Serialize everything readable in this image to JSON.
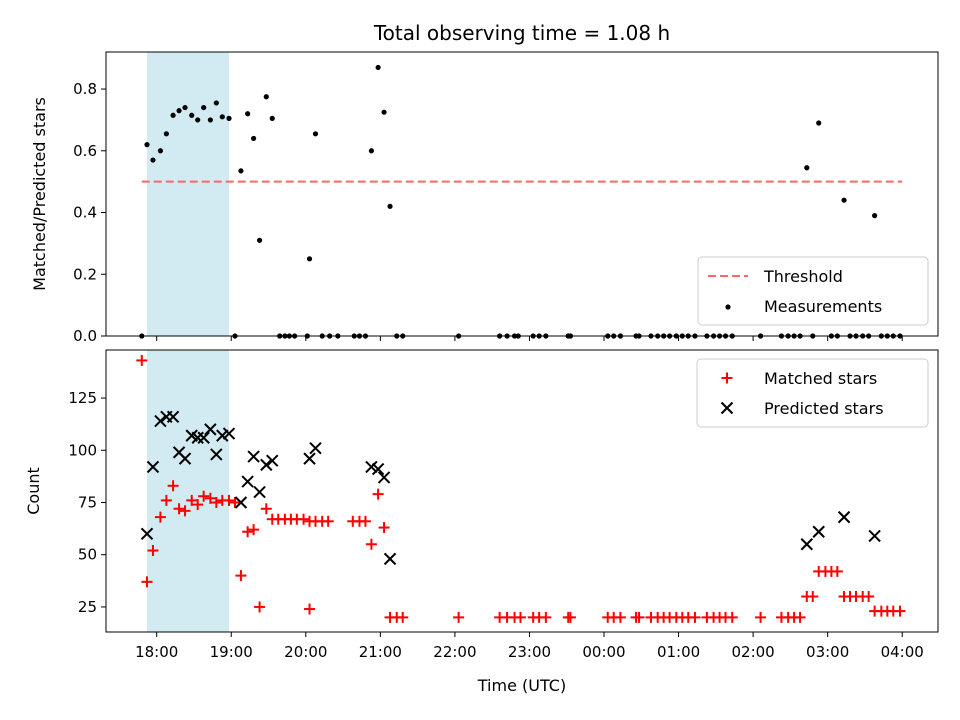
{
  "chart_data": [
    {
      "type": "scatter",
      "title": "Total observing time = 1.08 h",
      "ylabel": "Matched/Predicted stars",
      "xlabel": "",
      "x_unit": "hours since 18:00 UTC",
      "xlim": [
        -0.68,
        10.48
      ],
      "ylim": [
        0.0,
        0.92
      ],
      "yticks": [
        0.0,
        0.2,
        0.4,
        0.6,
        0.8
      ],
      "ytick_labels": [
        "0.0",
        "0.2",
        "0.4",
        "0.6",
        "0.8"
      ],
      "shaded_interval": {
        "x": [
          -0.13,
          0.97
        ],
        "color": "#add8e6"
      },
      "threshold": {
        "name": "Threshold",
        "y": 0.5,
        "x": [
          -0.2,
          10.0
        ],
        "color": "#ff6666"
      },
      "legend": {
        "position": "lower right",
        "entries": [
          "Threshold",
          "Measurements"
        ]
      },
      "series": [
        {
          "name": "Measurements",
          "color": "#000000",
          "points": [
            [
              -0.2,
              0.0
            ],
            [
              -0.13,
              0.62
            ],
            [
              -0.05,
              0.57
            ],
            [
              0.05,
              0.6
            ],
            [
              0.13,
              0.655
            ],
            [
              0.22,
              0.715
            ],
            [
              0.3,
              0.73
            ],
            [
              0.38,
              0.74
            ],
            [
              0.47,
              0.715
            ],
            [
              0.55,
              0.7
            ],
            [
              0.63,
              0.74
            ],
            [
              0.72,
              0.7
            ],
            [
              0.8,
              0.755
            ],
            [
              0.88,
              0.71
            ],
            [
              0.97,
              0.705
            ],
            [
              1.05,
              0.0
            ],
            [
              1.13,
              0.535
            ],
            [
              1.22,
              0.72
            ],
            [
              1.3,
              0.64
            ],
            [
              1.38,
              0.31
            ],
            [
              1.47,
              0.775
            ],
            [
              1.55,
              0.705
            ],
            [
              1.65,
              0.0
            ],
            [
              1.72,
              0.0
            ],
            [
              1.78,
              0.0
            ],
            [
              1.85,
              0.0
            ],
            [
              2.02,
              0.0
            ],
            [
              2.05,
              0.25
            ],
            [
              2.13,
              0.655
            ],
            [
              2.22,
              0.0
            ],
            [
              2.32,
              0.0
            ],
            [
              2.43,
              0.0
            ],
            [
              2.65,
              0.0
            ],
            [
              2.72,
              0.0
            ],
            [
              2.8,
              0.0
            ],
            [
              2.88,
              0.6
            ],
            [
              2.97,
              0.87
            ],
            [
              3.05,
              0.725
            ],
            [
              3.13,
              0.42
            ],
            [
              3.22,
              0.0
            ],
            [
              3.3,
              0.0
            ],
            [
              4.05,
              0.0
            ],
            [
              4.6,
              0.0
            ],
            [
              4.7,
              0.0
            ],
            [
              4.8,
              0.0
            ],
            [
              4.85,
              0.0
            ],
            [
              5.05,
              0.0
            ],
            [
              5.13,
              0.0
            ],
            [
              5.22,
              0.0
            ],
            [
              5.52,
              0.0
            ],
            [
              5.55,
              0.0
            ],
            [
              6.05,
              0.0
            ],
            [
              6.13,
              0.0
            ],
            [
              6.22,
              0.0
            ],
            [
              6.43,
              0.0
            ],
            [
              6.47,
              0.0
            ],
            [
              6.63,
              0.0
            ],
            [
              6.72,
              0.0
            ],
            [
              6.8,
              0.0
            ],
            [
              6.88,
              0.0
            ],
            [
              6.97,
              0.0
            ],
            [
              7.05,
              0.0
            ],
            [
              7.13,
              0.0
            ],
            [
              7.22,
              0.0
            ],
            [
              7.38,
              0.0
            ],
            [
              7.47,
              0.0
            ],
            [
              7.55,
              0.0
            ],
            [
              7.63,
              0.0
            ],
            [
              7.72,
              0.0
            ],
            [
              8.1,
              0.0
            ],
            [
              8.38,
              0.0
            ],
            [
              8.47,
              0.0
            ],
            [
              8.55,
              0.0
            ],
            [
              8.63,
              0.0
            ],
            [
              8.72,
              0.545
            ],
            [
              8.88,
              0.69
            ],
            [
              8.8,
              0.0
            ],
            [
              9.05,
              0.0
            ],
            [
              9.13,
              0.0
            ],
            [
              9.22,
              0.44
            ],
            [
              9.3,
              0.0
            ],
            [
              9.38,
              0.0
            ],
            [
              9.47,
              0.0
            ],
            [
              9.55,
              0.0
            ],
            [
              9.63,
              0.39
            ],
            [
              9.72,
              0.0
            ],
            [
              9.8,
              0.0
            ],
            [
              9.88,
              0.0
            ],
            [
              9.97,
              0.0
            ]
          ]
        }
      ]
    },
    {
      "type": "scatter",
      "title": "",
      "ylabel": "Count",
      "xlabel": "Time (UTC)",
      "x_unit": "hours since 18:00 UTC",
      "xlim": [
        -0.68,
        10.48
      ],
      "ylim": [
        13,
        148
      ],
      "xticks": [
        0,
        1,
        2,
        3,
        4,
        5,
        6,
        7,
        8,
        9,
        10
      ],
      "xtick_labels": [
        "18:00",
        "19:00",
        "20:00",
        "21:00",
        "22:00",
        "23:00",
        "00:00",
        "01:00",
        "02:00",
        "03:00",
        "04:00"
      ],
      "yticks": [
        25,
        50,
        75,
        100,
        125
      ],
      "ytick_labels": [
        "25",
        "50",
        "75",
        "100",
        "125"
      ],
      "shaded_interval": {
        "x": [
          -0.13,
          0.97
        ],
        "color": "#add8e6"
      },
      "legend": {
        "position": "upper right",
        "entries": [
          "Matched stars",
          "Predicted stars"
        ]
      },
      "series": [
        {
          "name": "Matched stars",
          "marker": "+",
          "color": "#ff0000",
          "points": [
            [
              -0.2,
              143
            ],
            [
              -0.13,
              37
            ],
            [
              -0.05,
              52
            ],
            [
              0.05,
              68
            ],
            [
              0.13,
              76
            ],
            [
              0.22,
              83
            ],
            [
              0.3,
              72
            ],
            [
              0.38,
              71
            ],
            [
              0.47,
              76
            ],
            [
              0.55,
              74
            ],
            [
              0.63,
              78
            ],
            [
              0.72,
              77
            ],
            [
              0.8,
              75
            ],
            [
              0.88,
              76
            ],
            [
              0.97,
              76
            ],
            [
              1.05,
              75
            ],
            [
              1.13,
              40
            ],
            [
              1.22,
              61
            ],
            [
              1.3,
              62
            ],
            [
              1.38,
              25
            ],
            [
              1.47,
              72
            ],
            [
              1.55,
              67
            ],
            [
              1.63,
              67
            ],
            [
              1.72,
              67
            ],
            [
              1.8,
              67
            ],
            [
              1.88,
              67
            ],
            [
              1.97,
              67
            ],
            [
              2.05,
              24
            ],
            [
              2.05,
              66
            ],
            [
              2.13,
              66
            ],
            [
              2.22,
              66
            ],
            [
              2.3,
              66
            ],
            [
              2.63,
              66
            ],
            [
              2.72,
              66
            ],
            [
              2.8,
              66
            ],
            [
              2.88,
              55
            ],
            [
              2.97,
              79
            ],
            [
              3.05,
              63
            ],
            [
              3.13,
              20
            ],
            [
              3.22,
              20
            ],
            [
              3.3,
              20
            ],
            [
              4.05,
              20
            ],
            [
              4.6,
              20
            ],
            [
              4.7,
              20
            ],
            [
              4.8,
              20
            ],
            [
              4.88,
              20
            ],
            [
              5.05,
              20
            ],
            [
              5.13,
              20
            ],
            [
              5.22,
              20
            ],
            [
              5.52,
              20
            ],
            [
              5.55,
              20
            ],
            [
              6.05,
              20
            ],
            [
              6.13,
              20
            ],
            [
              6.22,
              20
            ],
            [
              6.43,
              20
            ],
            [
              6.47,
              20
            ],
            [
              6.63,
              20
            ],
            [
              6.72,
              20
            ],
            [
              6.8,
              20
            ],
            [
              6.88,
              20
            ],
            [
              6.97,
              20
            ],
            [
              7.05,
              20
            ],
            [
              7.13,
              20
            ],
            [
              7.22,
              20
            ],
            [
              7.38,
              20
            ],
            [
              7.47,
              20
            ],
            [
              7.55,
              20
            ],
            [
              7.63,
              20
            ],
            [
              7.72,
              20
            ],
            [
              8.1,
              20
            ],
            [
              8.38,
              20
            ],
            [
              8.47,
              20
            ],
            [
              8.55,
              20
            ],
            [
              8.63,
              20
            ],
            [
              8.72,
              30
            ],
            [
              8.8,
              30
            ],
            [
              8.88,
              42
            ],
            [
              8.97,
              42
            ],
            [
              9.05,
              42
            ],
            [
              9.13,
              42
            ],
            [
              9.22,
              30
            ],
            [
              9.3,
              30
            ],
            [
              9.38,
              30
            ],
            [
              9.47,
              30
            ],
            [
              9.55,
              30
            ],
            [
              9.63,
              23
            ],
            [
              9.72,
              23
            ],
            [
              9.8,
              23
            ],
            [
              9.88,
              23
            ],
            [
              9.97,
              23
            ]
          ]
        },
        {
          "name": "Predicted stars",
          "marker": "x",
          "color": "#000000",
          "points": [
            [
              -0.13,
              60
            ],
            [
              -0.05,
              92
            ],
            [
              0.05,
              114
            ],
            [
              0.13,
              116
            ],
            [
              0.22,
              116
            ],
            [
              0.3,
              99
            ],
            [
              0.38,
              96
            ],
            [
              0.47,
              107
            ],
            [
              0.55,
              106
            ],
            [
              0.63,
              106
            ],
            [
              0.72,
              110
            ],
            [
              0.8,
              98
            ],
            [
              0.88,
              107
            ],
            [
              0.97,
              108
            ],
            [
              1.13,
              75
            ],
            [
              1.22,
              85
            ],
            [
              1.3,
              97
            ],
            [
              1.38,
              80
            ],
            [
              1.47,
              93
            ],
            [
              1.55,
              95
            ],
            [
              2.05,
              96
            ],
            [
              2.13,
              101
            ],
            [
              2.88,
              92
            ],
            [
              2.97,
              91
            ],
            [
              3.05,
              87
            ],
            [
              3.13,
              48
            ],
            [
              8.72,
              55
            ],
            [
              8.88,
              61
            ],
            [
              9.22,
              68
            ],
            [
              9.63,
              59
            ]
          ]
        }
      ]
    }
  ]
}
